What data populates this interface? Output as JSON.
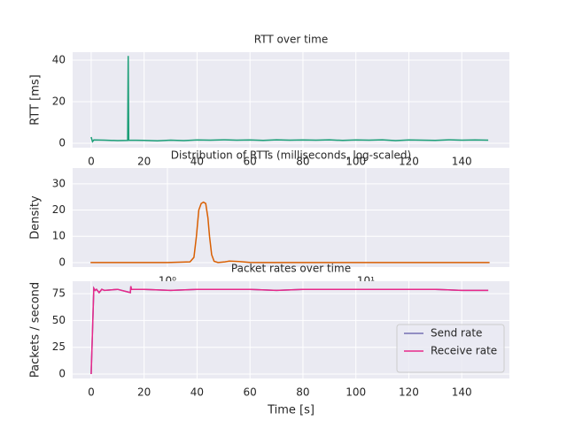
{
  "chart_data": [
    {
      "type": "line",
      "title": "RTT over time",
      "ylabel": "RTT [ms]",
      "x": [
        0,
        0.5,
        1,
        5,
        10,
        13.8,
        14,
        14.2,
        20,
        25,
        30,
        35,
        40,
        45,
        50,
        55,
        60,
        65,
        70,
        75,
        80,
        85,
        90,
        95,
        100,
        105,
        110,
        115,
        120,
        125,
        130,
        135,
        140,
        145,
        150
      ],
      "values": [
        3,
        0.8,
        1.6,
        1.5,
        1.3,
        1.4,
        42,
        1.5,
        1.4,
        1.2,
        1.5,
        1.3,
        1.6,
        1.5,
        1.7,
        1.5,
        1.6,
        1.4,
        1.7,
        1.5,
        1.6,
        1.5,
        1.7,
        1.4,
        1.6,
        1.5,
        1.7,
        1.3,
        1.6,
        1.5,
        1.4,
        1.7,
        1.5,
        1.6,
        1.5
      ],
      "color": "#1b9e77",
      "xlim": [
        -7,
        158
      ],
      "ylim": [
        -2.1,
        43.8
      ],
      "xticks": [
        0,
        20,
        40,
        60,
        80,
        100,
        120,
        140
      ],
      "yticks": [
        0,
        20,
        40
      ],
      "grid": true
    },
    {
      "type": "line",
      "title": "Distribution of RTTs (milliseconds, log-scaled)",
      "ylabel": "Density",
      "xscale": "log",
      "x": [
        0.41,
        1.0,
        1.3,
        1.36,
        1.4,
        1.44,
        1.48,
        1.52,
        1.56,
        1.6,
        1.63,
        1.67,
        1.72,
        1.8,
        1.95,
        2.05,
        2.3,
        2.6,
        3.0,
        42
      ],
      "values": [
        0,
        0,
        0.3,
        2,
        10,
        20,
        22.5,
        23,
        22.5,
        17,
        10,
        3,
        0.5,
        0,
        0.3,
        0.6,
        0.4,
        0.1,
        0,
        0
      ],
      "color": "#d95f02",
      "xlim": [
        0.333,
        52.9
      ],
      "ylim": [
        -1.7,
        36
      ],
      "xticks": [
        {
          "value": 1,
          "label": "10⁰"
        },
        {
          "value": 10,
          "label": "10¹"
        }
      ],
      "yticks": [
        0,
        10,
        20,
        30
      ],
      "grid": true
    },
    {
      "type": "line",
      "title": "Packet rates over time",
      "xlabel": "Time [s]",
      "ylabel": "Packets / second",
      "x": [
        0,
        1,
        1.5,
        2,
        3,
        4,
        5,
        10,
        14.8,
        15,
        15.2,
        20,
        30,
        40,
        50,
        60,
        70,
        80,
        90,
        100,
        110,
        120,
        130,
        140,
        150
      ],
      "series": [
        {
          "name": "Send rate",
          "color": "#7570b3",
          "values": [
            0,
            80,
            78,
            79,
            76,
            79,
            78,
            79,
            76,
            82,
            79,
            79,
            78,
            79,
            79,
            79,
            78,
            79,
            79,
            79,
            79,
            79,
            79,
            78,
            78
          ]
        },
        {
          "name": "Receive rate",
          "color": "#e7298a",
          "values": [
            0,
            80,
            78,
            79,
            76,
            79,
            78,
            79,
            76,
            82,
            79,
            79,
            78,
            79,
            79,
            79,
            78,
            79,
            79,
            79,
            79,
            79,
            79,
            78,
            78
          ]
        }
      ],
      "xlim": [
        -7,
        158
      ],
      "ylim": [
        -4.1,
        86.6
      ],
      "xticks": [
        0,
        20,
        40,
        60,
        80,
        100,
        120,
        140
      ],
      "yticks": [
        0,
        25,
        50,
        75
      ],
      "grid": true,
      "legend": "lower right"
    }
  ]
}
